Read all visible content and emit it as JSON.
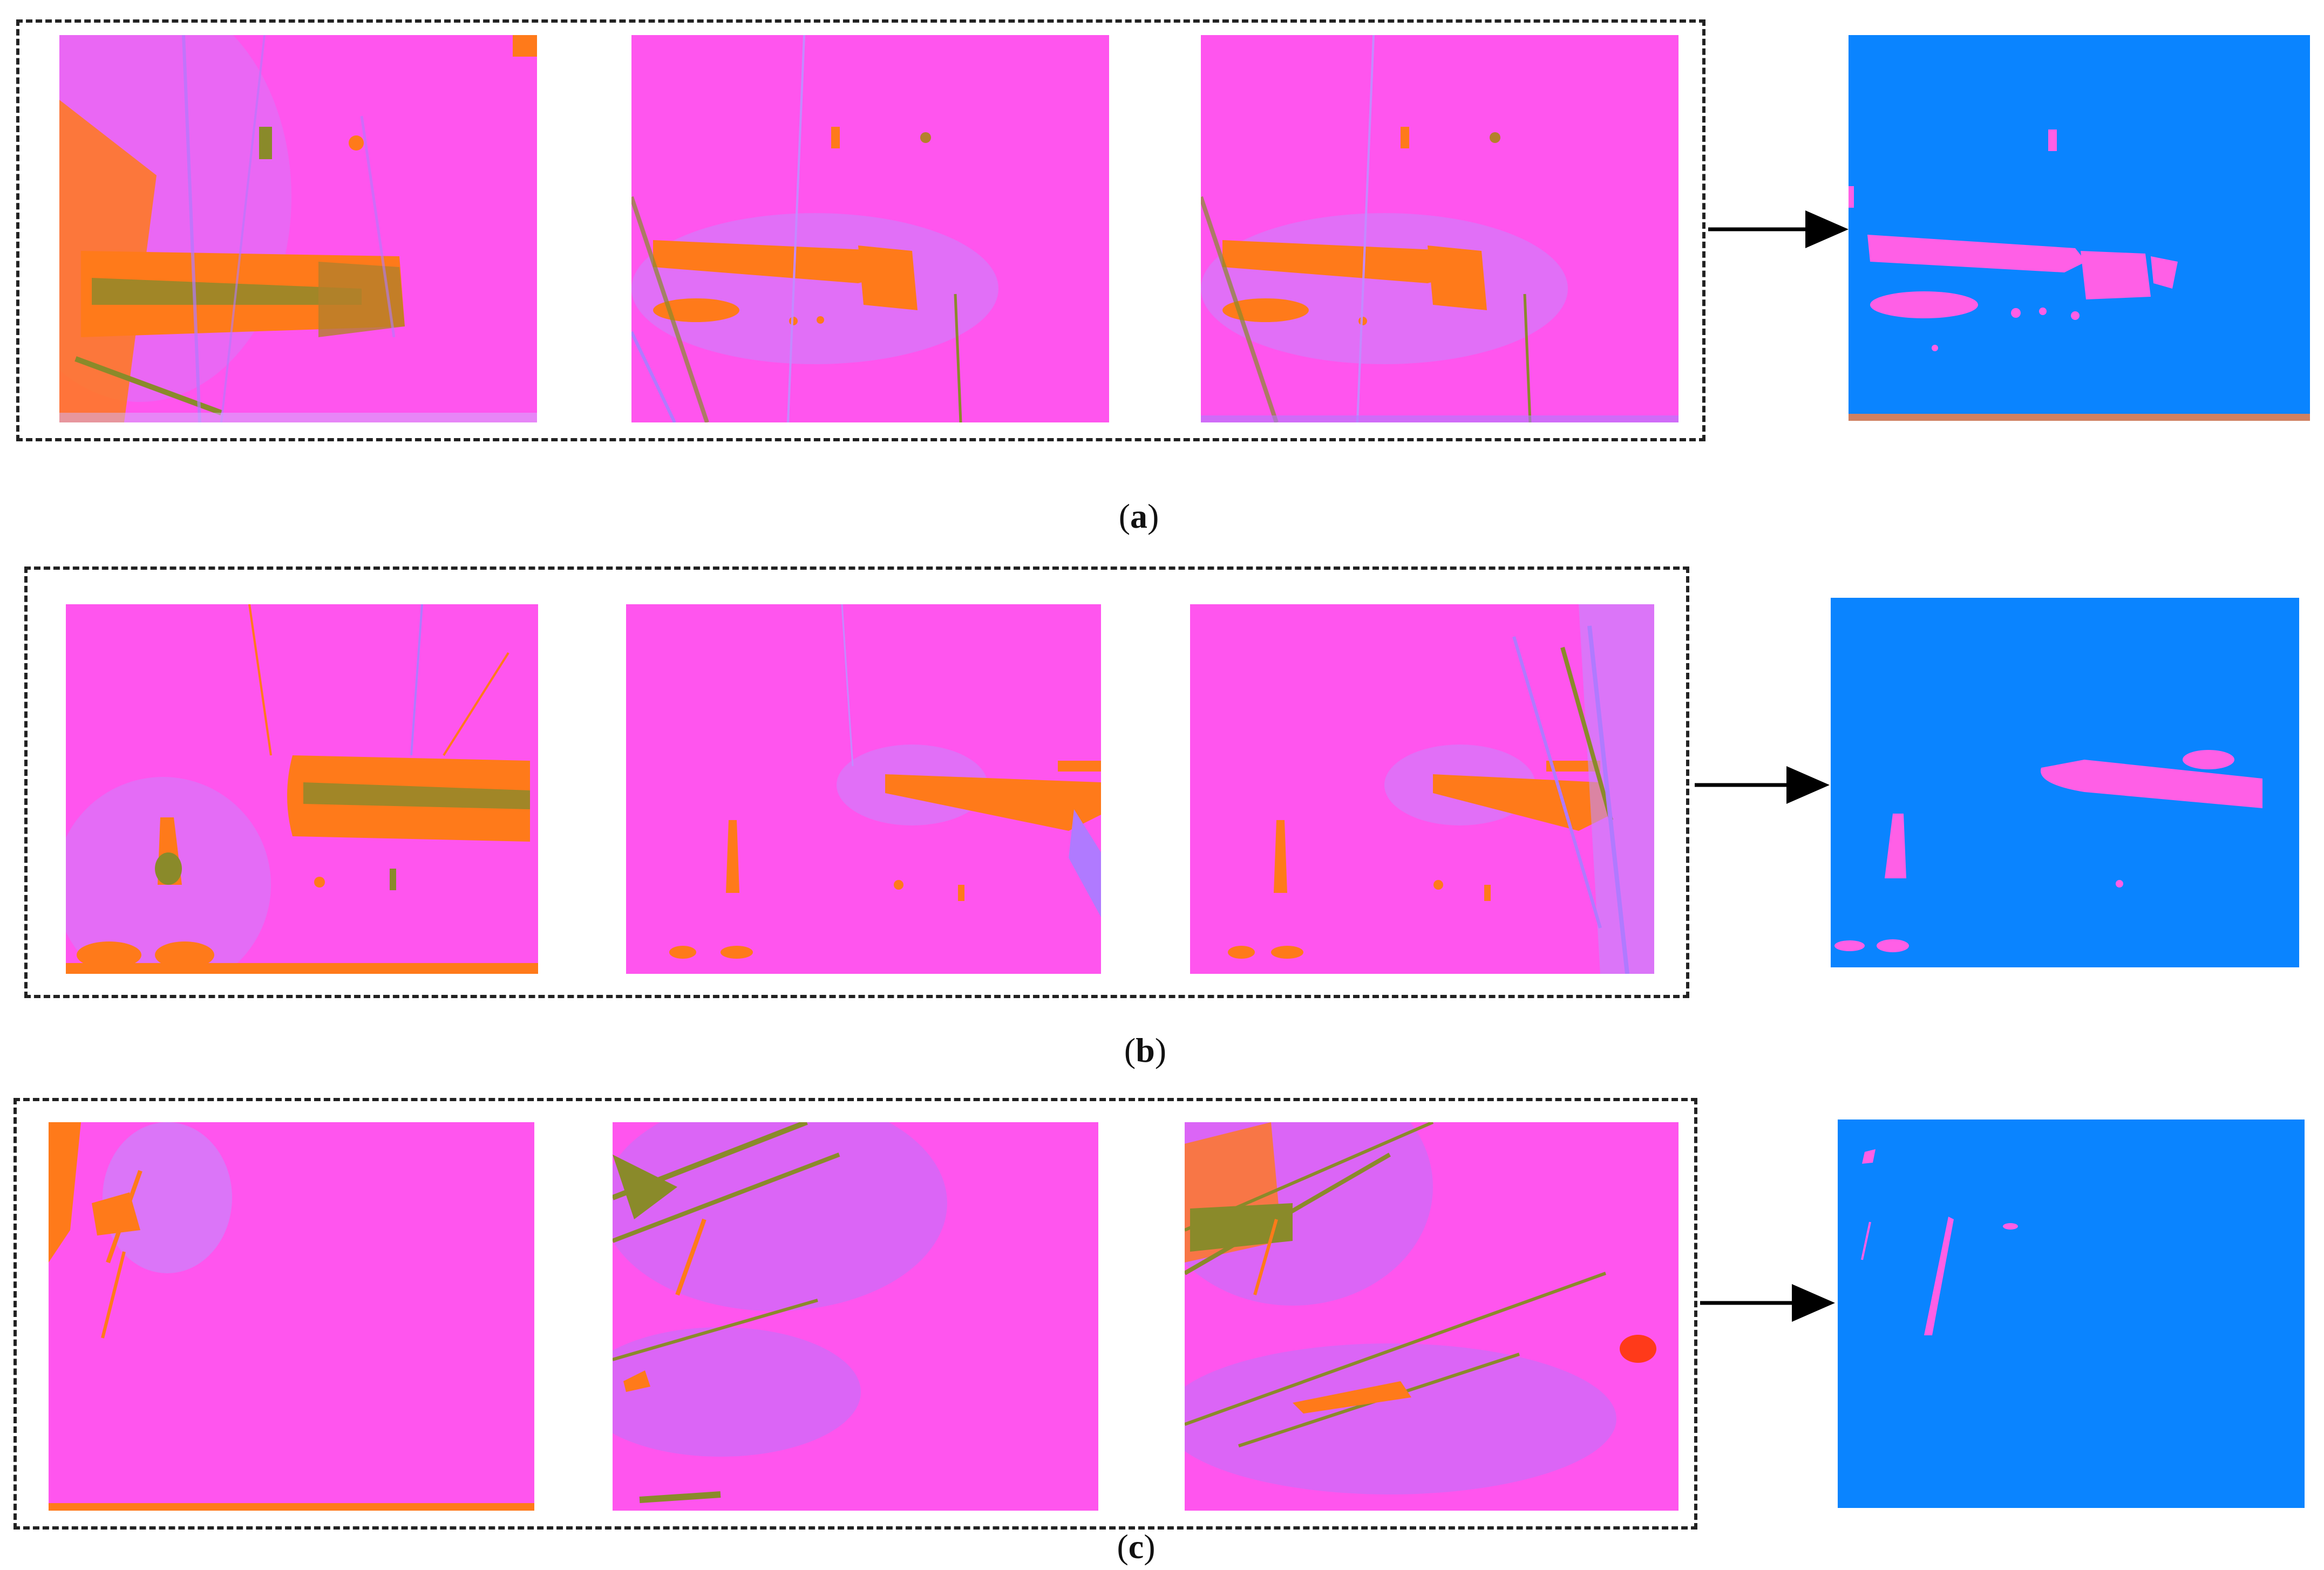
{
  "figure": {
    "rows": [
      {
        "caption_letter": "a",
        "input_frames": [
          "frame-1",
          "frame-2",
          "frame-3"
        ],
        "output": "segmentation-mask"
      },
      {
        "caption_letter": "b",
        "input_frames": [
          "frame-1",
          "frame-2",
          "frame-3"
        ],
        "output": "segmentation-mask"
      },
      {
        "caption_letter": "c",
        "input_frames": [
          "frame-1",
          "frame-2",
          "frame-3"
        ],
        "output": "segmentation-mask"
      }
    ],
    "colors": {
      "frame_background": "#ff55ee",
      "defect_orange": "#ff7a1a",
      "defect_olive": "#8a8a2a",
      "streak_violet": "#b07aff",
      "mask_background": "#0a84ff",
      "mask_defect": "#ff5fe6",
      "dashed_border": "#222222",
      "arrow": "#000000"
    },
    "caption_parens": {
      "open": "(",
      "close": ")"
    }
  }
}
